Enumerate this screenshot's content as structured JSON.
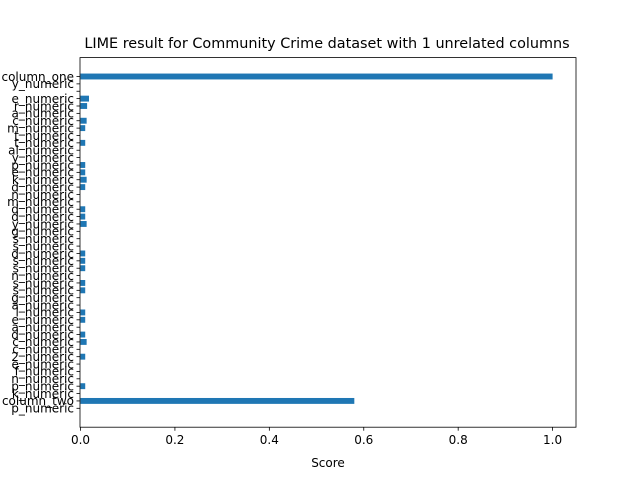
{
  "chart_data": {
    "type": "bar",
    "orientation": "horizontal",
    "title": "LIME result for Community Crime dataset with 1 unrelated columns",
    "xlabel": "Score",
    "ylabel": "",
    "xlim": [
      0,
      1.05
    ],
    "xticks": [
      "0.0",
      "0.2",
      "0.4",
      "0.6",
      "0.8",
      "1.0"
    ],
    "grid": false,
    "legend": "none",
    "bar_color": "#1f77b4",
    "categories": [
      "column_one",
      "y_numeric",
      "",
      "e_numeric",
      "r_numeric",
      "a_numeric",
      "c_numeric",
      "m_numeric",
      "t_numeric",
      "t_numeric",
      "al_numeric",
      "y_numeric",
      "p_numeric",
      "e_numeric",
      "k_numeric",
      "d_numeric",
      "n_numeric",
      "m_numeric",
      "d_numeric",
      "d_numeric",
      "y_numeric",
      "g_numeric",
      "s_numeric",
      "s_numeric",
      "d_numeric",
      "s_numeric",
      "s_numeric",
      "n_numeric",
      "s_numeric",
      "s_numeric",
      "g_numeric",
      "a_numeric",
      "l_numeric",
      "e_numeric",
      "a_numeric",
      "d_numeric",
      "c_numeric",
      "c_numeric",
      "2_numeric",
      "e_numeric",
      "f_numeric",
      "n_numeric",
      "p_numeric",
      "k_numeric",
      "column_two",
      "p_numeric"
    ],
    "values": [
      1.0,
      0.0,
      0.0,
      0.018,
      0.014,
      0.0,
      0.013,
      0.01,
      0.0,
      0.01,
      0.0,
      0.0,
      0.01,
      0.01,
      0.013,
      0.01,
      0.0,
      0.0,
      0.01,
      0.01,
      0.013,
      0.0,
      0.0,
      0.0,
      0.01,
      0.01,
      0.01,
      0.0,
      0.01,
      0.01,
      0.0,
      0.0,
      0.01,
      0.01,
      0.0,
      0.01,
      0.013,
      0.0,
      0.01,
      0.0,
      0.0,
      0.0,
      0.01,
      0.0,
      0.58,
      0.0
    ]
  }
}
